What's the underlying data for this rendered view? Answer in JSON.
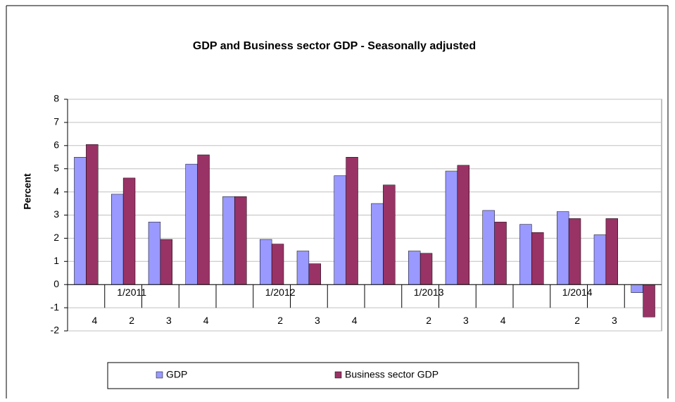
{
  "chart_data": {
    "type": "bar",
    "title": "GDP and Business sector GDP   - Seasonally adjusted",
    "y_label": "Percent",
    "category_rows": [
      [
        null,
        "1/2011",
        null,
        null,
        null,
        "1/2012",
        null,
        null,
        null,
        "1/2013",
        null,
        null,
        null,
        "1/2014",
        null,
        null
      ],
      [
        "4",
        "2",
        "3",
        "4",
        null,
        "2",
        "3",
        "4",
        null,
        "2",
        "3",
        "4",
        null,
        "2",
        "3",
        null
      ]
    ],
    "series": [
      {
        "name": "GDP",
        "color": "#9999ff",
        "values": [
          5.5,
          3.9,
          2.7,
          5.2,
          3.8,
          1.95,
          1.45,
          4.7,
          3.5,
          1.45,
          4.9,
          3.2,
          2.6,
          3.15,
          2.15,
          -0.35
        ]
      },
      {
        "name": "Business sector GDP",
        "color": "#993366",
        "values": [
          6.05,
          4.6,
          1.95,
          5.6,
          3.8,
          1.75,
          0.9,
          5.5,
          4.3,
          1.35,
          5.15,
          2.7,
          2.25,
          2.85,
          2.85,
          -1.4
        ]
      }
    ],
    "ylim": [
      -2,
      8
    ],
    "yticks": [
      -2,
      -1,
      0,
      1,
      2,
      3,
      4,
      5,
      6,
      7,
      8
    ],
    "grid": true
  }
}
